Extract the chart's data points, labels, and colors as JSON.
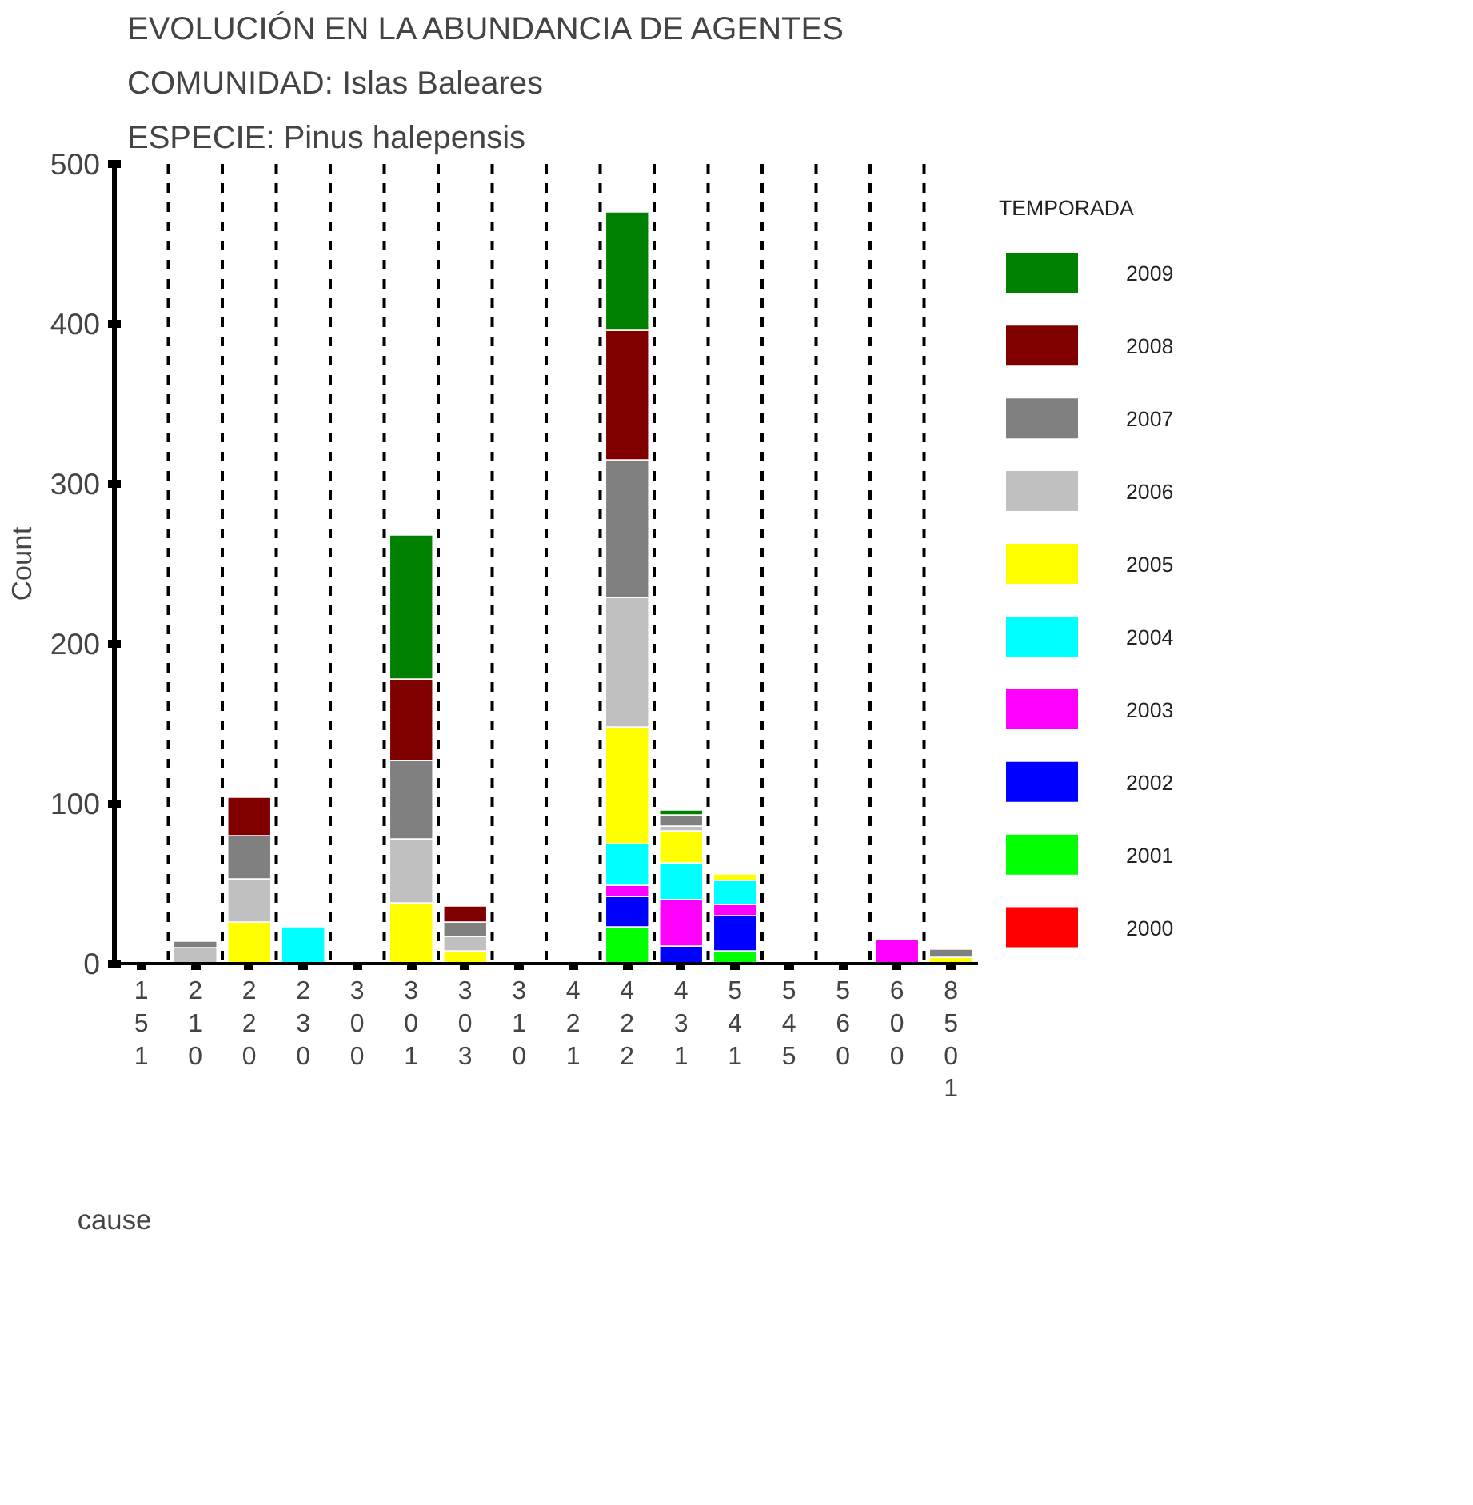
{
  "chart_data": {
    "type": "bar",
    "stacked": true,
    "title": "EVOLUCIÓN EN LA ABUNDANCIA DE AGENTES",
    "subtitle": "COMUNIDAD: Islas Baleares",
    "annotations": [
      "ESPECIE:  Pinus halepensis"
    ],
    "xlabel": "cause",
    "ylabel": "Count",
    "legend_title": "TEMPORADA",
    "categories": [
      "151",
      "210",
      "220",
      "230",
      "300",
      "301",
      "303",
      "310",
      "421",
      "422",
      "431",
      "541",
      "545",
      "560",
      "600",
      "8501"
    ],
    "ylim": [
      0,
      500
    ],
    "yticks": [
      0,
      100,
      200,
      300,
      400,
      500
    ],
    "grid": "x",
    "legend": "right",
    "series": [
      {
        "name": "2000",
        "color": "#ff0000",
        "values": [
          0,
          0,
          0,
          0,
          0,
          0,
          0,
          0,
          0,
          0,
          0,
          0,
          0,
          0,
          0,
          0
        ]
      },
      {
        "name": "2001",
        "color": "#00ff00",
        "values": [
          0,
          0,
          0,
          0,
          0,
          0,
          0,
          0,
          0,
          23,
          0,
          8,
          0,
          0,
          0,
          0
        ]
      },
      {
        "name": "2002",
        "color": "#0000ff",
        "values": [
          0,
          0,
          0,
          0,
          0,
          0,
          0,
          0,
          0,
          19,
          11,
          22,
          0,
          0,
          0,
          0
        ]
      },
      {
        "name": "2003",
        "color": "#ff00ff",
        "values": [
          0,
          0,
          0,
          0,
          0,
          0,
          0,
          0,
          0,
          7,
          29,
          7,
          0,
          0,
          15,
          0
        ]
      },
      {
        "name": "2004",
        "color": "#00ffff",
        "values": [
          0,
          0,
          0,
          23,
          0,
          0,
          0,
          0,
          0,
          26,
          23,
          15,
          0,
          0,
          0,
          0
        ]
      },
      {
        "name": "2005",
        "color": "#ffff00",
        "values": [
          0,
          0,
          26,
          0,
          0,
          38,
          8,
          0,
          0,
          73,
          20,
          4,
          0,
          0,
          0,
          4
        ]
      },
      {
        "name": "2006",
        "color": "#c0c0c0",
        "values": [
          0,
          10,
          27,
          0,
          0,
          40,
          9,
          0,
          0,
          81,
          3,
          0,
          0,
          0,
          0,
          0
        ]
      },
      {
        "name": "2007",
        "color": "#808080",
        "values": [
          0,
          4,
          27,
          0,
          0,
          49,
          9,
          0,
          0,
          86,
          7,
          0,
          0,
          0,
          0,
          5
        ]
      },
      {
        "name": "2008",
        "color": "#800000",
        "values": [
          0,
          0,
          24,
          0,
          0,
          51,
          10,
          0,
          0,
          81,
          0,
          0,
          0,
          0,
          0,
          0
        ]
      },
      {
        "name": "2009",
        "color": "#008000",
        "values": [
          0,
          0,
          0,
          0,
          0,
          90,
          0,
          0,
          0,
          74,
          3,
          0,
          0,
          0,
          0,
          0
        ]
      }
    ]
  }
}
